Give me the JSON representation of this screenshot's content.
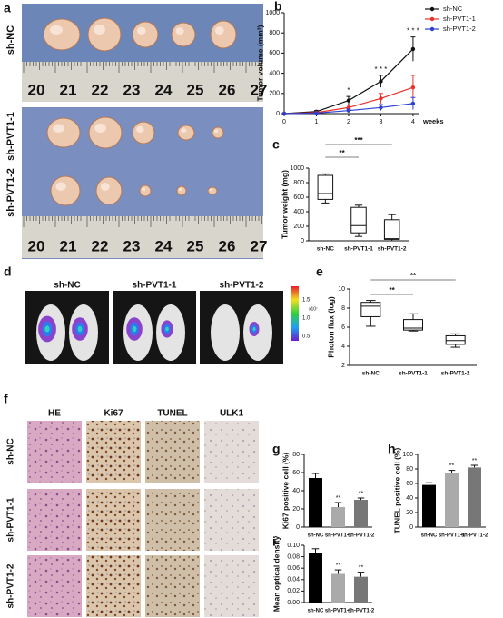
{
  "panels": {
    "a": {
      "label": "a",
      "rows": [
        "sh-NC",
        "sh-PVT1-1",
        "sh-PVT1-2"
      ],
      "rulers": [
        [
          "20",
          "21",
          "22",
          "23",
          "24",
          "25",
          "26",
          "27"
        ],
        [
          "20",
          "21",
          "22",
          "23",
          "24",
          "25",
          "26",
          "27"
        ]
      ]
    },
    "d": {
      "label": "d",
      "groups": [
        "sh-NC",
        "sh-PVT1-1",
        "sh-PVT1-2"
      ],
      "colorbar_ticks": [
        "1.5",
        "1.0",
        "0.5"
      ],
      "colorbar_unit": "x10⁷"
    },
    "f": {
      "label": "f",
      "columns": [
        "HE",
        "Ki67",
        "TUNEL",
        "ULK1"
      ],
      "rows": [
        "sh-NC",
        "sh-PVT1-1",
        "sh-PVT1-2"
      ]
    }
  },
  "chart_data": [
    {
      "type": "line",
      "label": "b",
      "ylabel": "Tumor volume (mm³)",
      "xlabel": "weeks",
      "x": [
        0,
        1,
        2,
        3,
        4
      ],
      "xlim": [
        0,
        4.2
      ],
      "xticks": [
        0,
        1,
        2,
        3,
        4
      ],
      "ylim": [
        0,
        1000
      ],
      "yticks": [
        0,
        200,
        400,
        600,
        800,
        1000
      ],
      "series": [
        {
          "name": "sh-NC",
          "color": "#111111",
          "values": [
            0,
            20,
            130,
            320,
            640
          ],
          "errors": [
            0,
            10,
            40,
            60,
            120
          ]
        },
        {
          "name": "sh-PVT1-1",
          "color": "#e8302a",
          "values": [
            0,
            10,
            60,
            150,
            260
          ],
          "errors": [
            0,
            5,
            25,
            50,
            120
          ]
        },
        {
          "name": "sh-PVT1-2",
          "color": "#2b3fd1",
          "values": [
            0,
            5,
            30,
            60,
            100
          ],
          "errors": [
            0,
            3,
            15,
            30,
            60
          ]
        }
      ],
      "annotations": [
        "*",
        "* * *",
        "* * *"
      ]
    },
    {
      "type": "box",
      "label": "c",
      "ylabel": "Tumor weight (mg)",
      "categories": [
        "sh-NC",
        "sh-PVT1-1",
        "sh-PVT1-2"
      ],
      "ylim": [
        0,
        1000
      ],
      "yticks": [
        0,
        200,
        400,
        600,
        800,
        1000
      ],
      "min": [
        520,
        60,
        0
      ],
      "q1": [
        570,
        110,
        20
      ],
      "median": [
        650,
        210,
        30
      ],
      "q3": [
        900,
        460,
        290
      ],
      "max": [
        920,
        490,
        360
      ],
      "annotations": [
        "**",
        "***"
      ]
    },
    {
      "type": "box",
      "label": "e",
      "ylabel": "Photon flux (log)",
      "categories": [
        "sh-NC",
        "sh-PVT1-1",
        "sh-PVT1-2"
      ],
      "ylim": [
        2,
        10
      ],
      "yticks": [
        2,
        4,
        6,
        8,
        10
      ],
      "min": [
        6.1,
        5.6,
        3.9
      ],
      "q1": [
        7.1,
        5.7,
        4.2
      ],
      "median": [
        8.2,
        5.9,
        4.6
      ],
      "q3": [
        8.6,
        6.8,
        5.1
      ],
      "max": [
        8.8,
        7.4,
        5.3
      ],
      "annotations": [
        "**",
        "**"
      ]
    },
    {
      "type": "bar",
      "label": "g",
      "ylabel": "Ki67 positive cell (%)",
      "categories": [
        "sh-NC",
        "sh-PVT1-1",
        "sh-PVT1-2"
      ],
      "colors": [
        "#000000",
        "#aaaaaa",
        "#777777"
      ],
      "ylim": [
        0,
        80
      ],
      "yticks": [
        0,
        20,
        40,
        60,
        80
      ],
      "values": [
        54,
        22,
        30
      ],
      "errors": [
        5,
        5,
        2
      ],
      "annotations": [
        "**",
        "**"
      ]
    },
    {
      "type": "bar",
      "label": "h",
      "ylabel": "TUNEL positive cell (%)",
      "categories": [
        "sh-NC",
        "sh-PVT1-1",
        "sh-PVT1-2"
      ],
      "colors": [
        "#000000",
        "#aaaaaa",
        "#777777"
      ],
      "ylim": [
        0,
        100
      ],
      "yticks": [
        0,
        20,
        40,
        60,
        80,
        100
      ],
      "values": [
        58,
        74,
        82
      ],
      "errors": [
        3,
        4,
        3
      ],
      "annotations": [
        "**",
        "**"
      ]
    },
    {
      "type": "bar",
      "label": "i",
      "ylabel": "Mean optical density",
      "categories": [
        "sh-NC",
        "sh-PVT1-1",
        "sh-PVT1-2"
      ],
      "colors": [
        "#000000",
        "#aaaaaa",
        "#777777"
      ],
      "ylim": [
        0,
        0.1
      ],
      "yticks": [
        {
          "value": 0,
          "label": "0.00"
        },
        {
          "value": 0.02,
          "label": "0.02"
        },
        {
          "value": 0.04,
          "label": "0.04"
        },
        {
          "value": 0.06,
          "label": "0.06"
        },
        {
          "value": 0.08,
          "label": "0.08"
        },
        {
          "value": 0.1,
          "label": "0.10"
        }
      ],
      "values": [
        0.087,
        0.05,
        0.045
      ],
      "errors": [
        0.007,
        0.007,
        0.008
      ],
      "annotations": [
        "**",
        "**"
      ]
    }
  ]
}
